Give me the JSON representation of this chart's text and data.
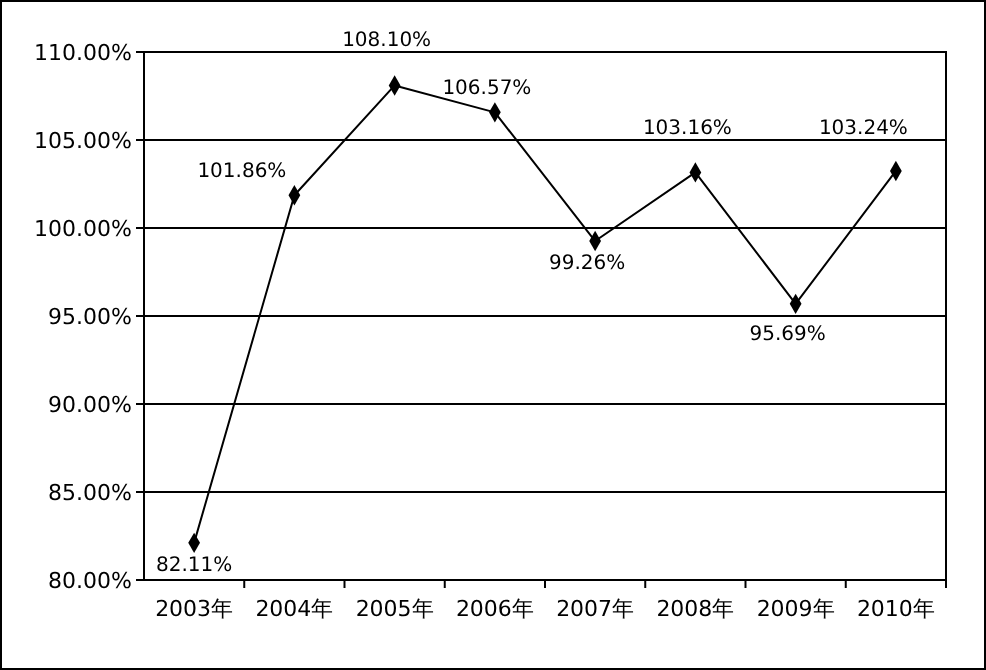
{
  "chart_data": {
    "type": "line",
    "categories": [
      "2003年",
      "2004年",
      "2005年",
      "2006年",
      "2007年",
      "2008年",
      "2009年",
      "2010年"
    ],
    "series": [
      {
        "color": "#000000",
        "values": [
          82.11,
          101.86,
          108.1,
          106.57,
          99.26,
          103.16,
          95.69,
          103.24
        ],
        "value_labels": [
          "82.11%",
          "101.86%",
          "108.10%",
          "106.57%",
          "99.26%",
          "103.16%",
          "95.69%",
          "103.24%"
        ]
      }
    ],
    "ylim": [
      80,
      110
    ],
    "yticks": [
      {
        "value": 80,
        "label": "80.00%"
      },
      {
        "value": 85,
        "label": "85.00%"
      },
      {
        "value": 90,
        "label": "90.00%"
      },
      {
        "value": 95,
        "label": "95.00%"
      },
      {
        "value": 100,
        "label": "100.00%"
      },
      {
        "value": 105,
        "label": "105.00%"
      },
      {
        "value": 110,
        "label": "110.00%"
      }
    ],
    "grid": "y",
    "marker": "diamond",
    "line_style": "solid"
  }
}
